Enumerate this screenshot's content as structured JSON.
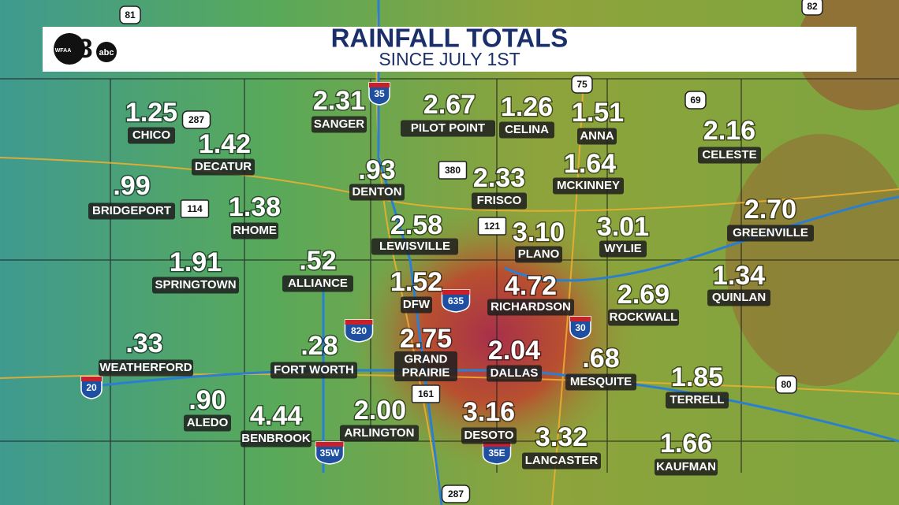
{
  "header": {
    "title": "RAINFALL TOTALS",
    "subtitle": "SINCE JULY 1ST",
    "logo": {
      "station": "WFAA",
      "channel": "8",
      "network": "abc"
    }
  },
  "locations": [
    {
      "name": "CHICO",
      "total": "1.25"
    },
    {
      "name": "DECATUR",
      "total": "1.42"
    },
    {
      "name": "BRIDGEPORT",
      "total": ".99"
    },
    {
      "name": "RHOME",
      "total": "1.38"
    },
    {
      "name": "SPRINGTOWN",
      "total": "1.91"
    },
    {
      "name": "WEATHERFORD",
      "total": ".33"
    },
    {
      "name": "ALEDO",
      "total": ".90"
    },
    {
      "name": "BENBROOK",
      "total": "4.44"
    },
    {
      "name": "FORT WORTH",
      "total": ".28"
    },
    {
      "name": "ALLIANCE",
      "total": ".52"
    },
    {
      "name": "SANGER",
      "total": "2.31"
    },
    {
      "name": "DENTON",
      "total": ".93"
    },
    {
      "name": "PILOT POINT",
      "total": "2.67"
    },
    {
      "name": "CELINA",
      "total": "1.26"
    },
    {
      "name": "ANNA",
      "total": "1.51"
    },
    {
      "name": "FRISCO",
      "total": "2.33"
    },
    {
      "name": "MCKINNEY",
      "total": "1.64"
    },
    {
      "name": "CELESTE",
      "total": "2.16"
    },
    {
      "name": "LEWISVILLE",
      "total": "2.58"
    },
    {
      "name": "PLANO",
      "total": "3.10"
    },
    {
      "name": "WYLIE",
      "total": "3.01"
    },
    {
      "name": "GREENVILLE",
      "total": "2.70"
    },
    {
      "name": "DFW",
      "total": "1.52"
    },
    {
      "name": "RICHARDSON",
      "total": "4.72"
    },
    {
      "name": "ROCKWALL",
      "total": "2.69"
    },
    {
      "name": "QUINLAN",
      "total": "1.34"
    },
    {
      "name": "GRAND\nPRAIRIE",
      "total": "2.75"
    },
    {
      "name": "DALLAS",
      "total": "2.04"
    },
    {
      "name": "MESQUITE",
      "total": ".68"
    },
    {
      "name": "TERRELL",
      "total": "1.85"
    },
    {
      "name": "ARLINGTON",
      "total": "2.00"
    },
    {
      "name": "DESOTO",
      "total": "3.16"
    },
    {
      "name": "LANCASTER",
      "total": "3.32"
    },
    {
      "name": "KAUFMAN",
      "total": "1.66"
    }
  ],
  "highways": [
    "81",
    "82",
    "287",
    "35",
    "75",
    "69",
    "380",
    "114",
    "121",
    "635",
    "820",
    "30",
    "20",
    "161",
    "35W",
    "35E",
    "80",
    "287"
  ]
}
